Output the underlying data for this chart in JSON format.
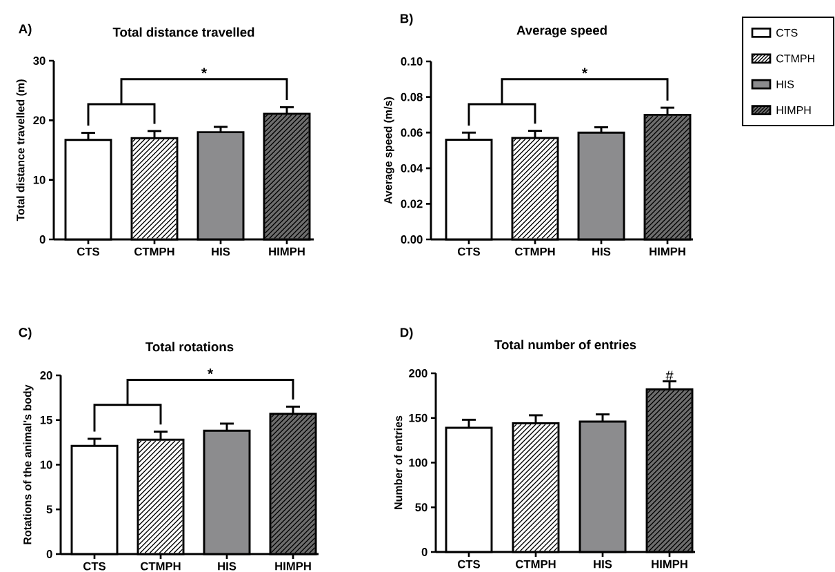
{
  "chart_data": [
    {
      "type": "bar",
      "title": "Total distance travelled",
      "ylabel": "Total distance travelled (m)",
      "categories": [
        "CTS",
        "CTMPH",
        "HIS",
        "HIMPH"
      ],
      "ylim": [
        0,
        30
      ],
      "yticks": [
        0,
        10,
        20,
        30
      ],
      "annotations": [
        "A)",
        "*"
      ],
      "series": [
        {
          "color": "#ffffff",
          "values": [
            16.7,
            null,
            null,
            null
          ],
          "errors": [
            [
              16.7,
              17.9
            ],
            null,
            null,
            null
          ]
        },
        {
          "color": "#ffffff",
          "values": [
            null,
            17.0,
            null,
            null
          ],
          "errors": [
            null,
            [
              17.0,
              18.2
            ],
            null,
            null
          ]
        },
        {
          "color": "#8c8c8e",
          "values": [
            null,
            null,
            18.0,
            null
          ],
          "errors": [
            null,
            null,
            [
              18.0,
              18.9
            ],
            null
          ]
        },
        {
          "color": "#6d6d6d",
          "values": [
            null,
            null,
            null,
            21.1
          ],
          "errors": [
            null,
            null,
            null,
            [
              21.1,
              22.2
            ]
          ]
        }
      ]
    },
    {
      "type": "bar",
      "title": "Average speed",
      "ylabel": "Average speed (m/s)",
      "categories": [
        "CTS",
        "CTMPH",
        "HIS",
        "HIMPH"
      ],
      "ylim": [
        0,
        0.1
      ],
      "yticks": [
        {
          "value": 0,
          "label": "0.00"
        },
        {
          "value": 0.02,
          "label": "0.02"
        },
        {
          "value": 0.04,
          "label": "0.04"
        },
        {
          "value": 0.06,
          "label": "0.06"
        },
        {
          "value": 0.08,
          "label": "0.08"
        },
        {
          "value": 0.1,
          "label": "0.10"
        }
      ],
      "legend": "top right",
      "annotations": [
        "B)",
        "*"
      ],
      "series": [
        {
          "name": "CTS",
          "color": "#ffffff",
          "values": [
            0.056,
            null,
            null,
            null
          ],
          "errors": [
            [
              0.056,
              0.06
            ],
            null,
            null,
            null
          ]
        },
        {
          "name": "CTMPH",
          "color": "#ffffff",
          "values": [
            null,
            0.057,
            null,
            null
          ],
          "errors": [
            null,
            [
              0.057,
              0.061
            ],
            null,
            null
          ]
        },
        {
          "name": "HIS",
          "color": "#8c8c8e",
          "values": [
            null,
            null,
            0.06,
            null
          ],
          "errors": [
            null,
            null,
            [
              0.06,
              0.063
            ],
            null
          ]
        },
        {
          "name": "HIMPH",
          "color": "#6d6d6d",
          "values": [
            null,
            null,
            null,
            0.07
          ],
          "errors": [
            null,
            null,
            null,
            [
              0.07,
              0.074
            ]
          ]
        }
      ]
    },
    {
      "type": "bar",
      "title": "Total rotations",
      "ylabel": "Rotations of the animal's body",
      "categories": [
        "CTS",
        "CTMPH",
        "HIS",
        "HIMPH"
      ],
      "ylim": [
        0,
        20
      ],
      "yticks": [
        0,
        5,
        10,
        15,
        20
      ],
      "annotations": [
        "C)",
        "*"
      ],
      "series": [
        {
          "color": "#ffffff",
          "values": [
            12.1,
            null,
            null,
            null
          ],
          "errors": [
            [
              12.1,
              12.9
            ],
            null,
            null,
            null
          ]
        },
        {
          "color": "#ffffff",
          "values": [
            null,
            12.8,
            null,
            null
          ],
          "errors": [
            null,
            [
              12.8,
              13.7
            ],
            null,
            null
          ]
        },
        {
          "color": "#8c8c8e",
          "values": [
            null,
            null,
            13.8,
            null
          ],
          "errors": [
            null,
            null,
            [
              13.8,
              14.6
            ],
            null
          ]
        },
        {
          "color": "#6d6d6d",
          "values": [
            null,
            null,
            null,
            15.7
          ],
          "errors": [
            null,
            null,
            null,
            [
              15.7,
              16.5
            ]
          ]
        }
      ]
    },
    {
      "type": "bar",
      "title": "Total number of entries",
      "ylabel": "Number of entries",
      "categories": [
        "CTS",
        "CTMPH",
        "HIS",
        "HIMPH"
      ],
      "ylim": [
        0,
        200
      ],
      "yticks": [
        0,
        50,
        100,
        150,
        200
      ],
      "annotations": [
        "D)",
        {
          "text": "#",
          "x": "HIMPH",
          "y": 191
        }
      ],
      "series": [
        {
          "color": "#ffffff",
          "values": [
            139,
            null,
            null,
            null
          ],
          "errors": [
            [
              139,
              148
            ],
            null,
            null,
            null
          ]
        },
        {
          "color": "#ffffff",
          "values": [
            null,
            144,
            null,
            null
          ],
          "errors": [
            null,
            [
              144,
              153
            ],
            null,
            null
          ]
        },
        {
          "color": "#8c8c8e",
          "values": [
            null,
            null,
            146,
            null
          ],
          "errors": [
            null,
            null,
            [
              146,
              154
            ],
            null
          ]
        },
        {
          "color": "#6d6d6d",
          "values": [
            null,
            null,
            null,
            182
          ],
          "errors": [
            null,
            null,
            null,
            [
              182,
              191
            ]
          ]
        }
      ]
    }
  ]
}
